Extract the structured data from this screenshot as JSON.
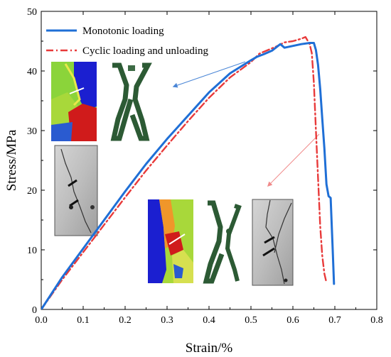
{
  "chart_data": {
    "type": "line",
    "xlabel": "Strain/%",
    "ylabel": "Stress/MPa",
    "xlim": [
      0,
      0.8
    ],
    "ylim": [
      0,
      50
    ],
    "xticks": [
      "0.0",
      "0.1",
      "0.2",
      "0.3",
      "0.4",
      "0.5",
      "0.6",
      "0.7",
      "0.8"
    ],
    "yticks": [
      "0",
      "10",
      "20",
      "30",
      "40",
      "50"
    ],
    "grid": false,
    "legend_position": "top-left",
    "series": [
      {
        "name": "Monotonic loading",
        "color": "#1f6fd6",
        "style": "solid",
        "x": [
          0.0,
          0.05,
          0.1,
          0.15,
          0.2,
          0.25,
          0.3,
          0.35,
          0.4,
          0.45,
          0.5,
          0.515,
          0.53,
          0.55,
          0.57,
          0.58,
          0.6,
          0.62,
          0.64,
          0.65,
          0.655,
          0.66,
          0.665,
          0.67,
          0.675,
          0.68,
          0.685,
          0.69,
          0.695,
          0.698
        ],
        "y": [
          0.0,
          5.4,
          10.2,
          15.0,
          19.8,
          24.4,
          28.6,
          32.5,
          36.4,
          39.6,
          41.8,
          42.4,
          42.8,
          43.4,
          44.5,
          43.9,
          44.2,
          44.5,
          44.7,
          44.7,
          43.5,
          41.0,
          37.0,
          32.0,
          27.0,
          21.0,
          19.0,
          18.7,
          10.0,
          4.3
        ]
      },
      {
        "name": "Cyclic loading and unloading",
        "color": "#e83a3a",
        "style": "dashdot",
        "x": [
          0.0,
          0.05,
          0.1,
          0.15,
          0.2,
          0.25,
          0.3,
          0.35,
          0.4,
          0.45,
          0.5,
          0.52,
          0.54,
          0.56,
          0.58,
          0.6,
          0.62,
          0.63,
          0.64,
          0.645,
          0.65,
          0.655,
          0.66,
          0.665,
          0.67,
          0.675,
          0.68
        ],
        "y": [
          0.0,
          5.0,
          9.6,
          14.2,
          18.8,
          23.3,
          27.5,
          31.6,
          35.5,
          38.9,
          41.5,
          42.9,
          43.5,
          44.1,
          44.8,
          45.0,
          45.4,
          45.7,
          44.5,
          43.0,
          38.0,
          30.0,
          22.0,
          14.0,
          9.0,
          6.0,
          4.5
        ]
      }
    ]
  },
  "insets": {
    "monotonic_color_map": "grain-colored fracture model (blue, green, yellow, red)",
    "monotonic_crack_map": "green crack distribution",
    "monotonic_photo": "grayscale specimen photo with crack",
    "cyclic_color_map": "grain-colored fracture model (blue, orange, green, red)",
    "cyclic_crack_map": "green crack distribution",
    "cyclic_photo": "grayscale specimen photo with cracks",
    "arrow_blue_color": "#4a86d6",
    "arrow_red_color": "#f08a8a"
  }
}
